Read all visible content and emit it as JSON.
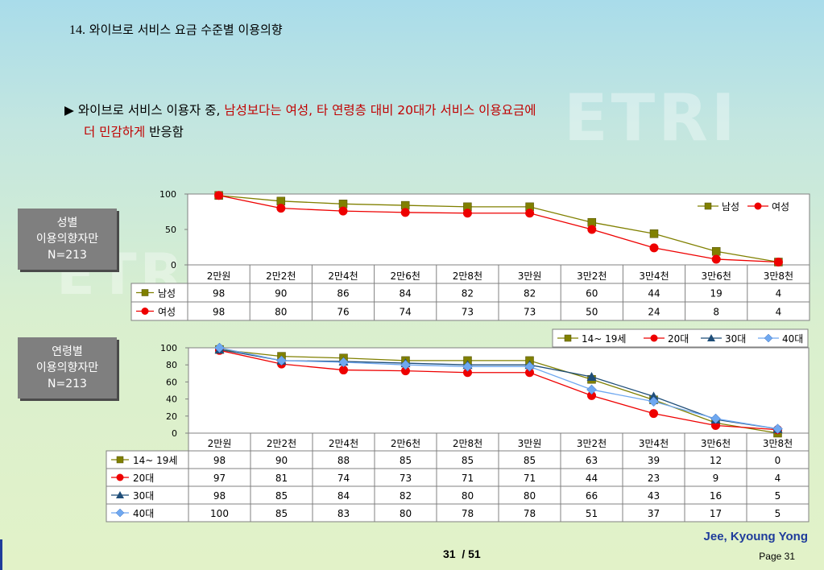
{
  "slide": {
    "title_num": "14.",
    "title_text": " 와이브로 서비스 요금 수준별 이용의향",
    "bullet_mark": "▶",
    "bullet_black1": " 와이브로 서비스 이용자 중, ",
    "bullet_red1": "남성보다는 여성, 타 연령층 대비 20대가 서비스 이용요금에",
    "bullet_red2": "더 민감하게",
    "bullet_black2": " 반응함"
  },
  "boxes": [
    {
      "line1": "성별",
      "line2": "이용의향자만",
      "line3": "N=213"
    },
    {
      "line1": "연령별",
      "line2": "이용의향자만",
      "line3": "N=213"
    }
  ],
  "footer": {
    "author": "Jee, Kyoung Yong",
    "page_label": "Page 31",
    "page_num": "31",
    "page_total": "/ 51"
  },
  "colors": {
    "olive": "#808000",
    "red": "#ee0000",
    "navy": "#1f4e79",
    "lightblue": "#6fa8f0"
  },
  "chart_data": [
    {
      "type": "line",
      "categories": [
        "2만원",
        "2만2천",
        "2만4천",
        "2만6천",
        "2만8천",
        "3만원",
        "3만2천",
        "3만4천",
        "3만6천",
        "3만8천"
      ],
      "yticks": [
        "100",
        "50",
        "0"
      ],
      "ylim": [
        0,
        100
      ],
      "legend_position": "top-right",
      "series": [
        {
          "name": "남성",
          "values": [
            98,
            90,
            86,
            84,
            82,
            82,
            60,
            44,
            19,
            4
          ],
          "marker": "square",
          "color": "#808000"
        },
        {
          "name": "여성",
          "values": [
            98,
            80,
            76,
            74,
            73,
            73,
            50,
            24,
            8,
            4
          ],
          "marker": "circle",
          "color": "#ee0000"
        }
      ]
    },
    {
      "type": "line",
      "categories": [
        "2만원",
        "2만2천",
        "2만4천",
        "2만6천",
        "2만8천",
        "3만원",
        "3만2천",
        "3만4천",
        "3만6천",
        "3만8천"
      ],
      "yticks": [
        "100",
        "80",
        "60",
        "40",
        "20",
        "0"
      ],
      "ylim": [
        0,
        100
      ],
      "legend_position": "top-right",
      "series": [
        {
          "name": "14~ 19세",
          "values": [
            98,
            90,
            88,
            85,
            85,
            85,
            63,
            39,
            12,
            0
          ],
          "marker": "square",
          "color": "#808000"
        },
        {
          "name": "20대",
          "values": [
            97,
            81,
            74,
            73,
            71,
            71,
            44,
            23,
            9,
            4
          ],
          "marker": "circle",
          "color": "#ee0000"
        },
        {
          "name": "30대",
          "values": [
            98,
            85,
            84,
            82,
            80,
            80,
            66,
            43,
            16,
            5
          ],
          "marker": "triangle",
          "color": "#1f4e79"
        },
        {
          "name": "40대",
          "values": [
            100,
            85,
            83,
            80,
            78,
            78,
            51,
            37,
            17,
            5
          ],
          "marker": "diamond",
          "color": "#6fa8f0"
        }
      ]
    }
  ]
}
